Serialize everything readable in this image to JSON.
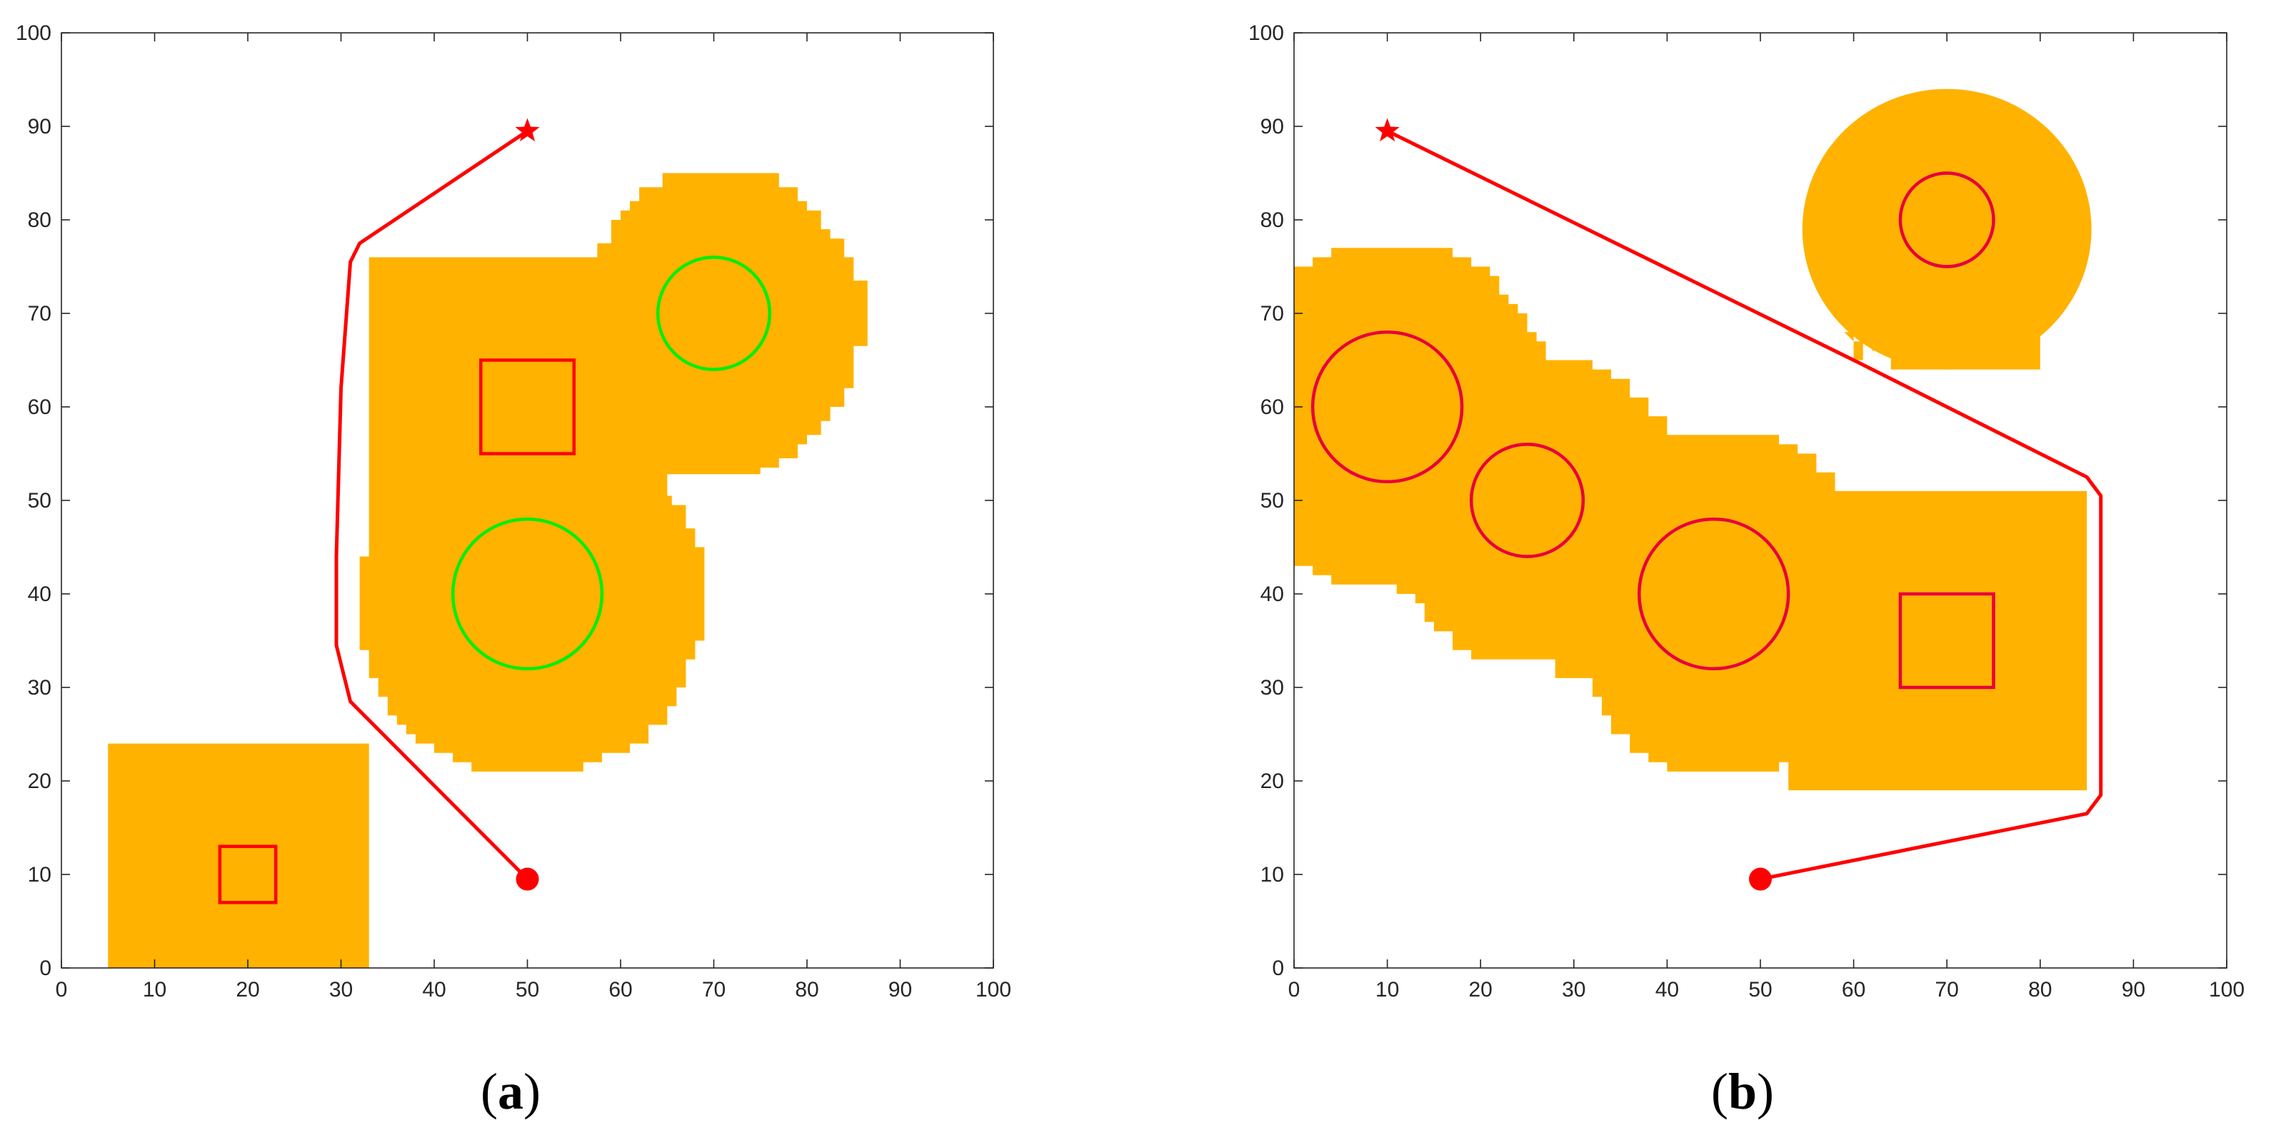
{
  "chart_data": [
    {
      "type": "scatter",
      "panel_label": "a",
      "title": "",
      "xlabel": "",
      "ylabel": "",
      "xlim": [
        0,
        100
      ],
      "ylim": [
        0,
        100
      ],
      "xticks": [
        0,
        10,
        20,
        30,
        40,
        50,
        60,
        70,
        80,
        90,
        100
      ],
      "yticks": [
        0,
        10,
        20,
        30,
        40,
        50,
        60,
        70,
        80,
        90,
        100
      ],
      "grid": false,
      "colors": {
        "inflated": "#FFB200",
        "obstacle_outline": "#FF0000",
        "green_obstacle": "#00EE00",
        "path": "#FF0000"
      },
      "inflated_region_polygons": [
        [
          [
            5,
            0
          ],
          [
            33,
            0
          ],
          [
            33,
            24
          ],
          [
            5,
            24
          ]
        ],
        [
          [
            33,
            76
          ],
          [
            57.5,
            76
          ],
          [
            57.5,
            77.5
          ],
          [
            59,
            77.5
          ],
          [
            59,
            80
          ],
          [
            60,
            80
          ],
          [
            60,
            81
          ],
          [
            61,
            81
          ],
          [
            61,
            82
          ],
          [
            62,
            82
          ],
          [
            62,
            83.5
          ],
          [
            64.5,
            83.5
          ],
          [
            64.5,
            85
          ],
          [
            77,
            85
          ],
          [
            77,
            83.5
          ],
          [
            79,
            83.5
          ],
          [
            79,
            82
          ],
          [
            80,
            82
          ],
          [
            80,
            81
          ],
          [
            81.5,
            81
          ],
          [
            81.5,
            79
          ],
          [
            82.5,
            79
          ],
          [
            82.5,
            78
          ],
          [
            84,
            78
          ],
          [
            84,
            76
          ],
          [
            85,
            76
          ],
          [
            85,
            73.5
          ],
          [
            86.5,
            73.5
          ],
          [
            86.5,
            66.5
          ],
          [
            85,
            66.5
          ],
          [
            85,
            62
          ],
          [
            84,
            62
          ],
          [
            84,
            60
          ],
          [
            82.5,
            60
          ],
          [
            82.5,
            58.5
          ],
          [
            81.5,
            58.5
          ],
          [
            81.5,
            57
          ],
          [
            80,
            57
          ],
          [
            80,
            56
          ],
          [
            79,
            56
          ],
          [
            79,
            54.5
          ],
          [
            77,
            54.5
          ],
          [
            77,
            53.5
          ],
          [
            75,
            53.5
          ],
          [
            75,
            52.8
          ],
          [
            65,
            52.8
          ],
          [
            65,
            53.5
          ],
          [
            65,
            50.5
          ],
          [
            65.5,
            50.5
          ],
          [
            65.5,
            49.5
          ],
          [
            67,
            49.5
          ],
          [
            67,
            47
          ],
          [
            68,
            47
          ],
          [
            68,
            45
          ],
          [
            69,
            45
          ],
          [
            69,
            35
          ],
          [
            68,
            35
          ],
          [
            68,
            33
          ],
          [
            67,
            33
          ],
          [
            67,
            30
          ],
          [
            66,
            30
          ],
          [
            66,
            28
          ],
          [
            65,
            28
          ],
          [
            65,
            26
          ],
          [
            63,
            26
          ],
          [
            63,
            24
          ],
          [
            61,
            24
          ],
          [
            61,
            23
          ],
          [
            58,
            23
          ],
          [
            58,
            22
          ],
          [
            56,
            22
          ],
          [
            56,
            21
          ],
          [
            44,
            21
          ],
          [
            44,
            22
          ],
          [
            42,
            22
          ],
          [
            42,
            23
          ],
          [
            40,
            23
          ],
          [
            40,
            24
          ],
          [
            38,
            24
          ],
          [
            38,
            25
          ],
          [
            37,
            25
          ],
          [
            37,
            26
          ],
          [
            36,
            26
          ],
          [
            36,
            27
          ],
          [
            35,
            27
          ],
          [
            35,
            29
          ],
          [
            34,
            29
          ],
          [
            34,
            31
          ],
          [
            33,
            31
          ],
          [
            33,
            34
          ],
          [
            32,
            34
          ],
          [
            32,
            44
          ],
          [
            33,
            44
          ]
        ]
      ],
      "squares": [
        {
          "x_min": 45,
          "x_max": 55,
          "y_min": 55,
          "y_max": 65,
          "color": "#FF0000"
        },
        {
          "x_min": 17,
          "x_max": 23,
          "y_min": 7,
          "y_max": 13,
          "color": "#FF0000"
        }
      ],
      "circles": [
        {
          "cx": 70,
          "cy": 70,
          "r": 6,
          "color": "#00EE00"
        },
        {
          "cx": 50,
          "cy": 40,
          "r": 8,
          "color": "#00EE00"
        }
      ],
      "path": {
        "x": [
          50,
          31,
          29.5,
          29.5,
          30,
          31,
          32,
          50
        ],
        "y": [
          9.5,
          28.5,
          34.5,
          44,
          62,
          75.5,
          77.5,
          89.5
        ]
      },
      "start": {
        "x": 50,
        "y": 9.5,
        "marker": "circle"
      },
      "goal": {
        "x": 50,
        "y": 89.5,
        "marker": "star"
      }
    },
    {
      "type": "scatter",
      "panel_label": "b",
      "title": "",
      "xlabel": "",
      "ylabel": "",
      "xlim": [
        0,
        100
      ],
      "ylim": [
        0,
        100
      ],
      "xticks": [
        0,
        10,
        20,
        30,
        40,
        50,
        60,
        70,
        80,
        90,
        100
      ],
      "yticks": [
        0,
        10,
        20,
        30,
        40,
        50,
        60,
        70,
        80,
        90,
        100
      ],
      "grid": false,
      "colors": {
        "inflated": "#FFB200",
        "obstacle_outline": "#E8003D",
        "path": "#FF0000"
      },
      "inflated_region_polygons": [
        [
          [
            0,
            75
          ],
          [
            2,
            75
          ],
          [
            2,
            76
          ],
          [
            4,
            76
          ],
          [
            4,
            77
          ],
          [
            17,
            77
          ],
          [
            17,
            76
          ],
          [
            19,
            76
          ],
          [
            19,
            75
          ],
          [
            21,
            75
          ],
          [
            21,
            74
          ],
          [
            22,
            74
          ],
          [
            22,
            72
          ],
          [
            23,
            72
          ],
          [
            23,
            71
          ],
          [
            24,
            71
          ],
          [
            24,
            70
          ],
          [
            25,
            70
          ],
          [
            25,
            68
          ],
          [
            26,
            68
          ],
          [
            26,
            67
          ],
          [
            27,
            67
          ],
          [
            27,
            65
          ],
          [
            32,
            65
          ],
          [
            32,
            64
          ],
          [
            34,
            64
          ],
          [
            34,
            63
          ],
          [
            36,
            63
          ],
          [
            36,
            61
          ],
          [
            38,
            61
          ],
          [
            38,
            59
          ],
          [
            40,
            59
          ],
          [
            40,
            57
          ],
          [
            52,
            57
          ],
          [
            52,
            56
          ],
          [
            54,
            56
          ],
          [
            54,
            55
          ],
          [
            56,
            55
          ],
          [
            56,
            53
          ],
          [
            58,
            53
          ],
          [
            58,
            51
          ],
          [
            85,
            51
          ],
          [
            85,
            19
          ],
          [
            53,
            19
          ],
          [
            53,
            22
          ],
          [
            52,
            22
          ],
          [
            52,
            21
          ],
          [
            40,
            21
          ],
          [
            40,
            22
          ],
          [
            38,
            22
          ],
          [
            38,
            23
          ],
          [
            36,
            23
          ],
          [
            36,
            25
          ],
          [
            34,
            25
          ],
          [
            34,
            27
          ],
          [
            33,
            27
          ],
          [
            33,
            29
          ],
          [
            32,
            29
          ],
          [
            32,
            31
          ],
          [
            28,
            31
          ],
          [
            28,
            33
          ],
          [
            19,
            33
          ],
          [
            19,
            34
          ],
          [
            17,
            34
          ],
          [
            17,
            36
          ],
          [
            15,
            36
          ],
          [
            15,
            37
          ],
          [
            14,
            37
          ],
          [
            14,
            39
          ],
          [
            13,
            39
          ],
          [
            13,
            40
          ],
          [
            11,
            40
          ],
          [
            11,
            41
          ],
          [
            4,
            41
          ],
          [
            4,
            42
          ],
          [
            2,
            42
          ],
          [
            2,
            43
          ],
          [
            0,
            43
          ]
        ],
        [
          [
            59,
            68
          ],
          [
            60,
            68
          ],
          [
            60,
            65
          ],
          [
            61,
            65
          ],
          [
            61,
            70
          ],
          [
            62,
            70
          ],
          [
            62,
            72
          ],
          [
            63,
            72
          ],
          [
            63,
            74
          ],
          [
            65,
            74
          ],
          [
            65,
            75
          ],
          [
            66,
            75
          ],
          [
            66,
            76
          ],
          [
            74,
            76
          ],
          [
            74,
            75
          ],
          [
            75,
            75
          ],
          [
            75,
            74
          ],
          [
            76,
            74
          ],
          [
            76,
            73
          ],
          [
            78,
            73
          ],
          [
            78,
            71
          ],
          [
            79,
            71
          ],
          [
            79,
            69
          ],
          [
            80,
            69
          ],
          [
            80,
            66
          ],
          [
            80,
            64
          ],
          [
            64,
            64
          ],
          [
            64,
            66
          ],
          [
            62,
            66
          ],
          [
            62,
            67
          ],
          [
            60,
            67
          ]
        ],
        [
          [
            55,
            88
          ],
          [
            55,
            86
          ],
          [
            58,
            86
          ],
          [
            58,
            84
          ],
          [
            59,
            84
          ],
          [
            59,
            82
          ],
          [
            60,
            82
          ],
          [
            60,
            78
          ],
          [
            59,
            78
          ],
          [
            59,
            76
          ],
          [
            58,
            76
          ],
          [
            58,
            74
          ],
          [
            57,
            74
          ],
          [
            57,
            72
          ],
          [
            56,
            72
          ],
          [
            56,
            70
          ],
          [
            55,
            70
          ],
          [
            55,
            68
          ],
          [
            54,
            68
          ],
          [
            54,
            67
          ],
          [
            52,
            67
          ],
          [
            52,
            66
          ],
          [
            51,
            66
          ],
          [
            51,
            65
          ],
          [
            49,
            65
          ],
          [
            49,
            64
          ],
          [
            64,
            64
          ],
          [
            64,
            65
          ],
          [
            62,
            65
          ],
          [
            62,
            66
          ],
          [
            61,
            66
          ],
          [
            61,
            68
          ],
          [
            60,
            68
          ],
          [
            60,
            70
          ],
          [
            61,
            70
          ],
          [
            61,
            73
          ],
          [
            62,
            73
          ],
          [
            62,
            75
          ],
          [
            63,
            75
          ],
          [
            63,
            77
          ],
          [
            64,
            77
          ],
          [
            64,
            78
          ],
          [
            62,
            78
          ],
          [
            62,
            81
          ],
          [
            61,
            81
          ],
          [
            61,
            84
          ],
          [
            60,
            84
          ],
          [
            60,
            86
          ],
          [
            58,
            86
          ],
          [
            58,
            88
          ]
        ]
      ],
      "circle_blob": {
        "x_min": 55,
        "x_max": 86,
        "y_min": 64,
        "y_max": 94,
        "cx": 70,
        "cy": 79
      },
      "squares": [
        {
          "x_min": 65,
          "x_max": 75,
          "y_min": 30,
          "y_max": 40,
          "color": "#E8003D"
        }
      ],
      "circles": [
        {
          "cx": 10,
          "cy": 60,
          "r": 8,
          "color": "#E8003D"
        },
        {
          "cx": 25,
          "cy": 50,
          "r": 6,
          "color": "#E8003D"
        },
        {
          "cx": 45,
          "cy": 40,
          "r": 8,
          "color": "#E8003D"
        },
        {
          "cx": 70,
          "cy": 80,
          "r": 5,
          "color": "#E8003D"
        }
      ],
      "path": {
        "x": [
          50,
          85,
          86.5,
          86.5,
          85,
          60,
          10
        ],
        "y": [
          9.5,
          16.5,
          18.5,
          50.5,
          52.5,
          65,
          89.5
        ]
      },
      "start": {
        "x": 50,
        "y": 9.5,
        "marker": "circle"
      },
      "goal": {
        "x": 10,
        "y": 89.5,
        "marker": "star"
      }
    }
  ]
}
